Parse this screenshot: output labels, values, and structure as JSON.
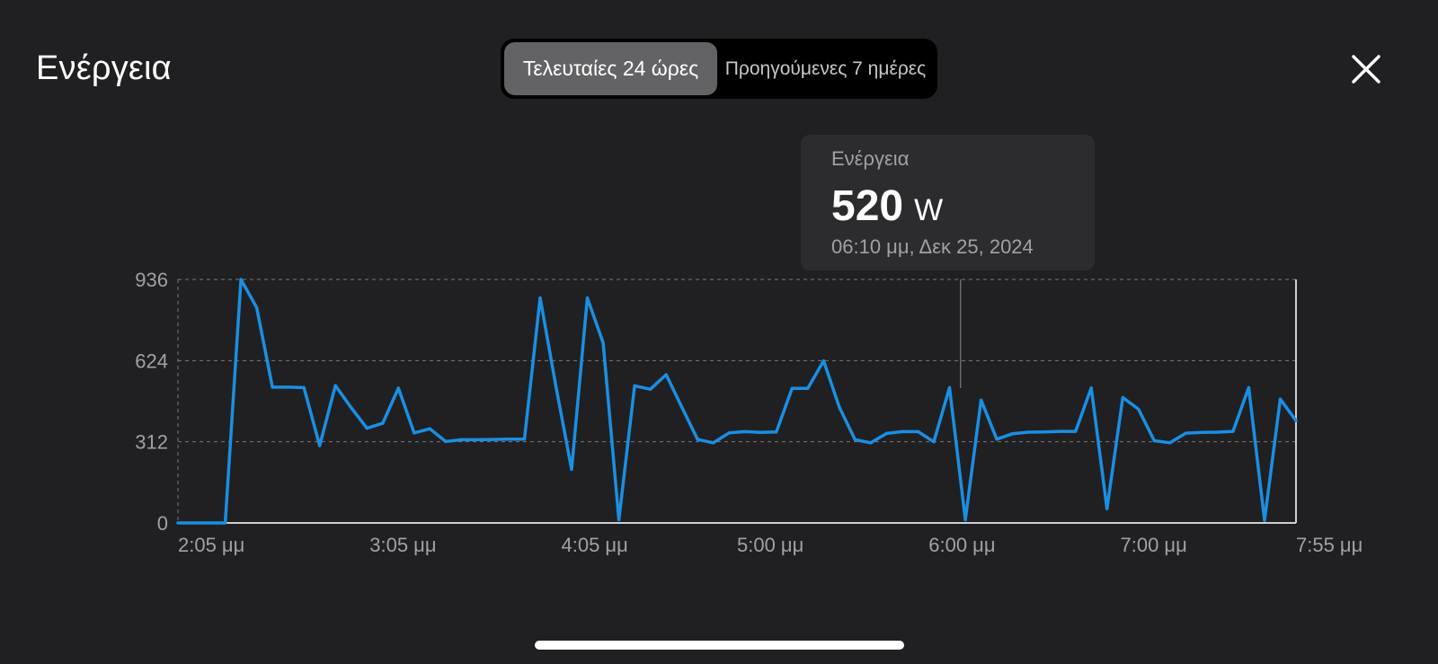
{
  "header": {
    "title": "Ενέργεια",
    "close_icon": "close-icon"
  },
  "segmented": {
    "options": [
      "Τελευταίες 24 ώρες",
      "Προηγούμενες 7 ημέρες"
    ],
    "selected": "Τελευταίες 24 ώρες"
  },
  "tooltip": {
    "label": "Ενέργεια",
    "value": "520",
    "unit": "W",
    "date": "06:10 μμ, Δεκ 25, 2024"
  },
  "colors": {
    "background": "#202022",
    "line": "#1a8fe3",
    "tooltip_bg": "#2c2c2e",
    "segment_active": "#636366"
  },
  "chart_data": {
    "type": "line",
    "title": "",
    "xlabel": "",
    "ylabel": "",
    "ylim": [
      0,
      936
    ],
    "yticks": [
      "0",
      "312",
      "624",
      "936"
    ],
    "xticks": [
      "2:05 μμ",
      "3:05 μμ",
      "4:05 μμ",
      "5:00 μμ",
      "6:00 μμ",
      "7:00 μμ",
      "7:55 μμ"
    ],
    "x_range_minutes_after_noon": [
      125,
      475
    ],
    "grid": true,
    "selected_time": "06:10 μμ",
    "series": [
      {
        "values": [
          0,
          0,
          0,
          0,
          936,
          828,
          522,
          522,
          520,
          297,
          528,
          443,
          364,
          383,
          518,
          346,
          362,
          313,
          320,
          320,
          321,
          322,
          322,
          865,
          526,
          206,
          865,
          692,
          12,
          527,
          514,
          570,
          445,
          321,
          308,
          346,
          351,
          348,
          350,
          517,
          517,
          623,
          445,
          320,
          308,
          344,
          351,
          351,
          312,
          520,
          12,
          472,
          322,
          343,
          349,
          350,
          352,
          352,
          519,
          55,
          482,
          437,
          316,
          308,
          345,
          348,
          349,
          352,
          520,
          10,
          476,
          393
        ]
      }
    ]
  }
}
